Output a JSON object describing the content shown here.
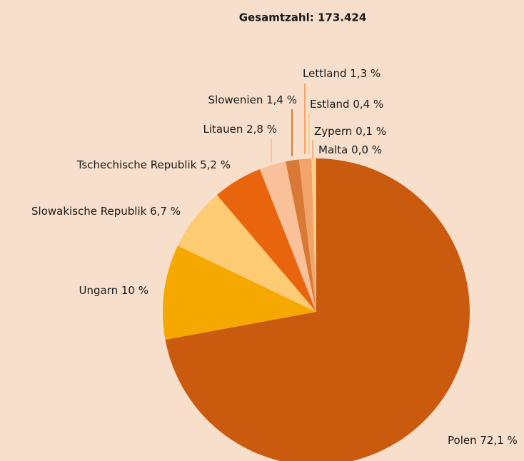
{
  "chart_data": {
    "type": "pie",
    "title": "Gesamtzahl: 173.424",
    "categories": [
      "Polen",
      "Ungarn",
      "Slowakische Republik",
      "Tschechische Republik",
      "Litauen",
      "Slowenien",
      "Lettland",
      "Estland",
      "Zypern",
      "Malta"
    ],
    "values": [
      72.1,
      10,
      6.7,
      5.2,
      2.8,
      1.4,
      1.3,
      0.4,
      0.1,
      0.0
    ],
    "value_labels": [
      "72,1 %",
      "10 %",
      "6,7 %",
      "5,2 %",
      "2,8 %",
      "1,4 %",
      "1,3 %",
      "0,4 %",
      "0,1 %",
      "0,0 %"
    ],
    "colors": [
      "#c95a0e",
      "#f5a800",
      "#fccb74",
      "#e8650d",
      "#f9c09a",
      "#d87a35",
      "#f3a46a",
      "#fbd08a",
      "#f0b48a",
      "#f7c9a4"
    ]
  }
}
